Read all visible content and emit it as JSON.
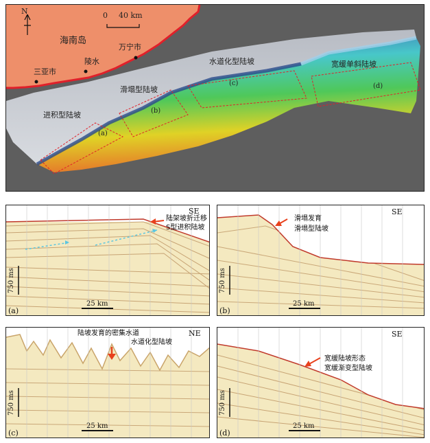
{
  "map": {
    "north": "N",
    "scale_zero": "0",
    "scale_label": "40 km",
    "island": "海南岛",
    "cities": {
      "wanning": "万宁市",
      "lingshui": "陵水",
      "sanya": "三亚市"
    },
    "zones": {
      "a_name": "进积型陆坡",
      "a_tag": "(a)",
      "b_name": "滑塌型陆坡",
      "b_tag": "(b)",
      "c_name": "水道化型陆坡",
      "c_tag": "(c)",
      "d_name": "宽缓单斜陆坡",
      "d_tag": "(d)"
    }
  },
  "profiles": {
    "a": {
      "tag": "(a)",
      "dir": "SE",
      "ann1": "陆架坡折迁移",
      "ann2": "S型进积陆坡",
      "vscale": "750 ms",
      "hscale": "25 km"
    },
    "b": {
      "tag": "(b)",
      "dir": "SE",
      "ann1": "滑塌发育",
      "ann2": "滑塌型陆坡",
      "vscale": "750 ms",
      "hscale": "25 km"
    },
    "c": {
      "tag": "(c)",
      "dir": "NE",
      "ann1": "陆坡发育的密集水道",
      "ann2": "水道化型陆坡",
      "vscale": "750 ms",
      "hscale": "25 km"
    },
    "d": {
      "tag": "(d)",
      "dir": "SE",
      "ann1": "宽缓陆坡形态",
      "ann2": "宽缓渐变型陆坡",
      "vscale": "750 ms",
      "hscale": "25 km"
    }
  },
  "colors": {
    "land": "#ee8f6a",
    "coast": "#e0202a",
    "frame": "#5a5a5a",
    "seismic_bg": "#f4e9c0",
    "seismic_line": "#b88c5a",
    "arrow": "#e8401c"
  }
}
